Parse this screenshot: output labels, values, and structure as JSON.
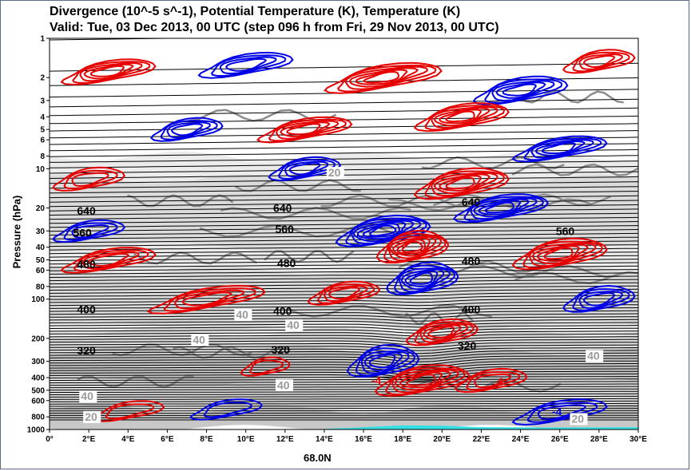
{
  "chart_data": {
    "type": "contour",
    "title": "Divergence (10^-5 s^-1), Potential Temperature (K), Temperature (K)",
    "subtitle": "Valid: Tue, 03 Dec 2013, 00 UTC (step 096 h from Fri, 29 Nov 2013, 00 UTC)",
    "xlabel": "68.0N",
    "ylabel": "Pressure (hPa)",
    "y_scale": "log",
    "ylim": [
      1000,
      1
    ],
    "xlim": [
      0,
      30
    ],
    "x_ticks": [
      {
        "value": 0,
        "label": "0°"
      },
      {
        "value": 2,
        "label": "2°E"
      },
      {
        "value": 4,
        "label": "4°E"
      },
      {
        "value": 6,
        "label": "6°E"
      },
      {
        "value": 8,
        "label": "8°E"
      },
      {
        "value": 10,
        "label": "10°E"
      },
      {
        "value": 12,
        "label": "12°E"
      },
      {
        "value": 14,
        "label": "14°E"
      },
      {
        "value": 16,
        "label": "16°E"
      },
      {
        "value": 18,
        "label": "18°E"
      },
      {
        "value": 20,
        "label": "20°E"
      },
      {
        "value": 22,
        "label": "22°E"
      },
      {
        "value": 24,
        "label": "24°E"
      },
      {
        "value": 26,
        "label": "26°E"
      },
      {
        "value": 28,
        "label": "28°E"
      },
      {
        "value": 30,
        "label": "30°E"
      }
    ],
    "y_ticks": [
      1000,
      800,
      600,
      500,
      400,
      300,
      200,
      100,
      80,
      60,
      50,
      40,
      30,
      20,
      10,
      8,
      6,
      5,
      4,
      3,
      2,
      1
    ],
    "potential_temperature_labels": [
      {
        "value": "640",
        "x": 1.4,
        "p": 21
      },
      {
        "value": "640",
        "x": 11.4,
        "p": 20
      },
      {
        "value": "640",
        "x": 21.0,
        "p": 18
      },
      {
        "value": "560",
        "x": 1.2,
        "p": 31
      },
      {
        "value": "560",
        "x": 11.5,
        "p": 29
      },
      {
        "value": "560",
        "x": 25.8,
        "p": 30
      },
      {
        "value": "480",
        "x": 1.4,
        "p": 54
      },
      {
        "value": "480",
        "x": 11.6,
        "p": 53
      },
      {
        "value": "480",
        "x": 21.0,
        "p": 51
      },
      {
        "value": "400",
        "x": 1.4,
        "p": 120
      },
      {
        "value": "400",
        "x": 11.4,
        "p": 123
      },
      {
        "value": "400",
        "x": 21.0,
        "p": 120
      },
      {
        "value": "320",
        "x": 1.4,
        "p": 248
      },
      {
        "value": "320",
        "x": 11.3,
        "p": 245
      },
      {
        "value": "320",
        "x": 20.8,
        "p": 228
      }
    ],
    "temperature_labels": [
      {
        "value": "40",
        "x": 1.6,
        "p": 570
      },
      {
        "value": "20",
        "x": 1.8,
        "p": 820
      },
      {
        "value": "40",
        "x": 7.3,
        "p": 210
      },
      {
        "value": "40",
        "x": 9.5,
        "p": 135
      },
      {
        "value": "40",
        "x": 12.1,
        "p": 162
      },
      {
        "value": "40",
        "x": 11.6,
        "p": 470
      },
      {
        "value": "40",
        "x": 27.4,
        "p": 280
      },
      {
        "value": "20",
        "x": 26.6,
        "p": 850
      },
      {
        "value": "20",
        "x": 14.2,
        "p": 11
      }
    ],
    "divergence_labels": [
      {
        "value": "-4",
        "x": 16.4,
        "p": 420,
        "color": "red"
      },
      {
        "value": "4",
        "x": 22.8,
        "p": 430,
        "color": "red"
      },
      {
        "value": "-4",
        "x": 25.6,
        "p": 730,
        "color": "blue"
      }
    ],
    "divergence_colors": {
      "positive": "#e60000",
      "negative": "#0000e6"
    },
    "theta_color": "#000000",
    "temperature_shading": [
      "#b4b4b4",
      "#c8c8c8",
      "#dcdcdc",
      "#ececec"
    ],
    "orography_color": "#33e0e6"
  }
}
